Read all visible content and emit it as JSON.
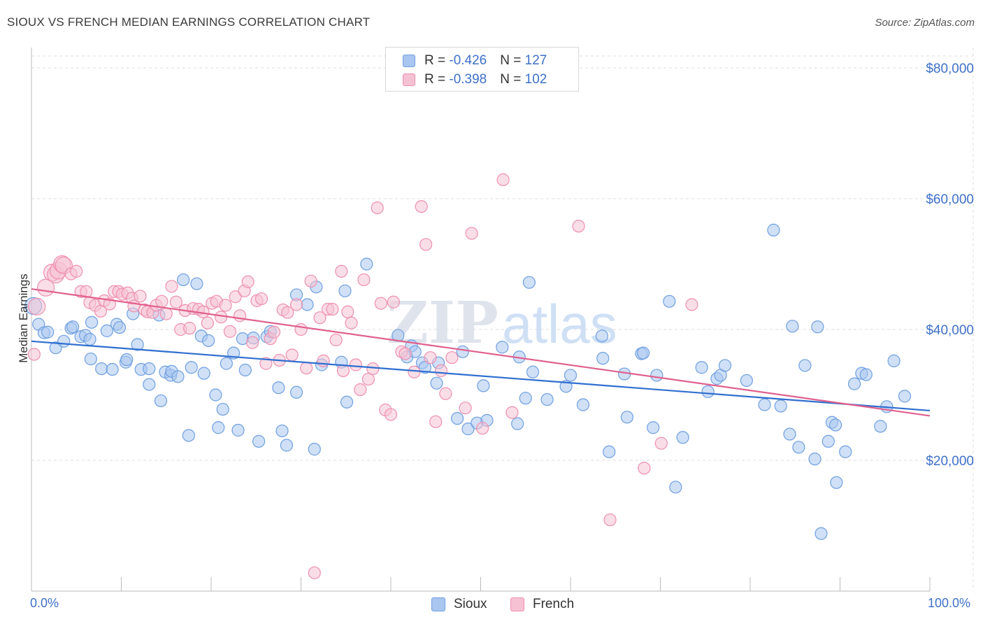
{
  "title": "SIOUX VS FRENCH MEDIAN EARNINGS CORRELATION CHART",
  "source": "Source: ZipAtlas.com",
  "watermark": "ZIPatlas",
  "legend": {
    "rows": [
      {
        "r_label": "R = ",
        "r_value": "-0.426",
        "n_label": "N = ",
        "n_value": "127",
        "color": "#a9c6f0",
        "border": "#6f9fe0"
      },
      {
        "r_label": "R = ",
        "r_value": "-0.398",
        "n_label": "N = ",
        "n_value": "102",
        "color": "#f6c2d3",
        "border": "#ee8fb0"
      }
    ]
  },
  "bottom_legend": [
    {
      "label": "Sioux",
      "color": "#a9c6f0",
      "border": "#6f9fe0"
    },
    {
      "label": "French",
      "color": "#f6c2d3",
      "border": "#ee8fb0"
    }
  ],
  "chart_data": {
    "type": "scatter",
    "ylabel": "Median Earnings",
    "xlabel_left": "0.0%",
    "xlabel_right": "100.0%",
    "xlim": [
      0,
      100
    ],
    "ylim": [
      0,
      80000
    ],
    "y_ticks": [
      {
        "value": 20000,
        "label": "$20,000"
      },
      {
        "value": 40000,
        "label": "$40,000"
      },
      {
        "value": 60000,
        "label": "$60,000"
      },
      {
        "value": 80000,
        "label": "$80,000"
      }
    ],
    "x_minor_ticks": [
      0,
      10,
      20,
      30,
      40,
      50,
      60,
      70,
      80,
      90,
      100
    ],
    "grid": true,
    "series": [
      {
        "name": "Sioux",
        "color": "#6f9fe0",
        "fill": "#a9c6f0",
        "trend": {
          "x": [
            0,
            100
          ],
          "y": [
            38200,
            27600
          ],
          "color": "#2f6fd0"
        },
        "points": [
          [
            0.2,
            43600
          ],
          [
            0.8,
            40800
          ],
          [
            1.4,
            39500
          ],
          [
            1.8,
            39600
          ],
          [
            2.7,
            37200
          ],
          [
            3.6,
            38200
          ],
          [
            4.4,
            40200
          ],
          [
            4.6,
            40400
          ],
          [
            5.5,
            38900
          ],
          [
            6.0,
            39100
          ],
          [
            6.5,
            38500
          ],
          [
            6.6,
            35500
          ],
          [
            6.7,
            41100
          ],
          [
            7.8,
            34000
          ],
          [
            8.4,
            39800
          ],
          [
            9.0,
            33900
          ],
          [
            9.5,
            40800
          ],
          [
            9.8,
            40300
          ],
          [
            10.5,
            35000
          ],
          [
            10.6,
            35400
          ],
          [
            11.3,
            42400
          ],
          [
            11.8,
            37700
          ],
          [
            12.2,
            33900
          ],
          [
            13.1,
            34000
          ],
          [
            13.1,
            31600
          ],
          [
            14.2,
            42200
          ],
          [
            14.4,
            29100
          ],
          [
            14.9,
            33500
          ],
          [
            15.5,
            33000
          ],
          [
            15.6,
            33600
          ],
          [
            16.3,
            32800
          ],
          [
            16.9,
            47600
          ],
          [
            17.5,
            23800
          ],
          [
            17.8,
            34200
          ],
          [
            18.4,
            47000
          ],
          [
            18.9,
            39000
          ],
          [
            19.2,
            33300
          ],
          [
            19.7,
            38300
          ],
          [
            20.5,
            30000
          ],
          [
            20.8,
            25000
          ],
          [
            21.3,
            27800
          ],
          [
            21.7,
            34800
          ],
          [
            22.5,
            36400
          ],
          [
            23.0,
            24600
          ],
          [
            23.5,
            38600
          ],
          [
            23.8,
            33800
          ],
          [
            24.7,
            38700
          ],
          [
            25.3,
            22900
          ],
          [
            26.2,
            38900
          ],
          [
            26.6,
            39700
          ],
          [
            27.5,
            31100
          ],
          [
            27.9,
            24500
          ],
          [
            28.4,
            22300
          ],
          [
            29.5,
            45300
          ],
          [
            29.5,
            30400
          ],
          [
            30.7,
            43800
          ],
          [
            31.5,
            21700
          ],
          [
            31.7,
            46500
          ],
          [
            32.3,
            34600
          ],
          [
            34.5,
            35000
          ],
          [
            34.9,
            45900
          ],
          [
            35.1,
            28900
          ],
          [
            37.3,
            50000
          ],
          [
            40.8,
            39100
          ],
          [
            41.8,
            35800
          ],
          [
            42.3,
            37500
          ],
          [
            42.7,
            36600
          ],
          [
            43.5,
            34900
          ],
          [
            43.8,
            34200
          ],
          [
            45.1,
            31800
          ],
          [
            45.3,
            34900
          ],
          [
            47.4,
            26400
          ],
          [
            48.0,
            36600
          ],
          [
            48.6,
            24800
          ],
          [
            49.6,
            25700
          ],
          [
            50.3,
            31400
          ],
          [
            50.7,
            26100
          ],
          [
            52.4,
            37300
          ],
          [
            54.1,
            25600
          ],
          [
            54.3,
            35800
          ],
          [
            55.0,
            29500
          ],
          [
            55.4,
            47200
          ],
          [
            55.8,
            33500
          ],
          [
            57.4,
            29300
          ],
          [
            59.5,
            31300
          ],
          [
            60.0,
            33000
          ],
          [
            61.4,
            28500
          ],
          [
            63.5,
            39000
          ],
          [
            63.6,
            35600
          ],
          [
            64.3,
            21300
          ],
          [
            66.0,
            33200
          ],
          [
            66.3,
            26600
          ],
          [
            67.9,
            36300
          ],
          [
            68.1,
            36400
          ],
          [
            69.2,
            25000
          ],
          [
            69.6,
            33000
          ],
          [
            71.0,
            44300
          ],
          [
            71.7,
            15900
          ],
          [
            72.5,
            23500
          ],
          [
            74.6,
            34200
          ],
          [
            75.3,
            30500
          ],
          [
            76.3,
            32500
          ],
          [
            76.7,
            33000
          ],
          [
            77.2,
            34500
          ],
          [
            79.6,
            32200
          ],
          [
            81.6,
            28500
          ],
          [
            82.6,
            55200
          ],
          [
            83.4,
            28300
          ],
          [
            84.4,
            24000
          ],
          [
            84.7,
            40500
          ],
          [
            85.4,
            22000
          ],
          [
            86.1,
            34500
          ],
          [
            87.2,
            20200
          ],
          [
            87.5,
            40400
          ],
          [
            87.9,
            8800
          ],
          [
            88.7,
            22900
          ],
          [
            89.1,
            25800
          ],
          [
            89.5,
            25400
          ],
          [
            89.6,
            16600
          ],
          [
            90.6,
            21300
          ],
          [
            91.6,
            31700
          ],
          [
            92.4,
            33300
          ],
          [
            92.9,
            33100
          ],
          [
            94.5,
            25200
          ],
          [
            95.2,
            28200
          ],
          [
            96.0,
            35200
          ],
          [
            97.2,
            29800
          ]
        ]
      },
      {
        "name": "French",
        "color": "#ee8fb0",
        "fill": "#f6c2d3",
        "trend": {
          "x": [
            0,
            100
          ],
          "y": [
            46200,
            26800
          ],
          "color": "#e0608e"
        },
        "points": [
          [
            0.3,
            36200
          ],
          [
            0.6,
            43500
          ],
          [
            1.6,
            46400
          ],
          [
            2.3,
            48700
          ],
          [
            2.7,
            48400
          ],
          [
            3.0,
            49000
          ],
          [
            3.4,
            50000
          ],
          [
            3.6,
            49800
          ],
          [
            4.4,
            48500
          ],
          [
            5.0,
            48900
          ],
          [
            5.5,
            45800
          ],
          [
            6.1,
            45800
          ],
          [
            6.5,
            44100
          ],
          [
            7.1,
            43700
          ],
          [
            7.7,
            42800
          ],
          [
            8.1,
            44400
          ],
          [
            8.7,
            43900
          ],
          [
            9.2,
            45800
          ],
          [
            9.7,
            45800
          ],
          [
            10.1,
            45400
          ],
          [
            10.7,
            45600
          ],
          [
            11.2,
            44800
          ],
          [
            11.4,
            43600
          ],
          [
            12.1,
            45100
          ],
          [
            12.6,
            43000
          ],
          [
            12.9,
            42700
          ],
          [
            13.5,
            42600
          ],
          [
            13.9,
            43700
          ],
          [
            14.5,
            44300
          ],
          [
            15.0,
            42400
          ],
          [
            15.6,
            46600
          ],
          [
            16.1,
            44200
          ],
          [
            16.6,
            40000
          ],
          [
            17.1,
            42900
          ],
          [
            17.6,
            40200
          ],
          [
            18.0,
            43200
          ],
          [
            18.6,
            43100
          ],
          [
            19.1,
            42700
          ],
          [
            19.6,
            41000
          ],
          [
            20.1,
            44000
          ],
          [
            20.6,
            44300
          ],
          [
            21.1,
            41900
          ],
          [
            21.6,
            43700
          ],
          [
            22.1,
            39700
          ],
          [
            22.7,
            45000
          ],
          [
            23.2,
            42100
          ],
          [
            23.7,
            45900
          ],
          [
            24.1,
            47300
          ],
          [
            24.6,
            38000
          ],
          [
            25.1,
            44400
          ],
          [
            25.6,
            44700
          ],
          [
            26.1,
            34800
          ],
          [
            26.6,
            38600
          ],
          [
            27.0,
            39600
          ],
          [
            27.6,
            35300
          ],
          [
            28.0,
            43000
          ],
          [
            28.5,
            42600
          ],
          [
            29.0,
            36100
          ],
          [
            29.5,
            43800
          ],
          [
            30.0,
            40000
          ],
          [
            30.6,
            34100
          ],
          [
            31.1,
            47400
          ],
          [
            31.5,
            2800
          ],
          [
            32.1,
            41800
          ],
          [
            32.5,
            35200
          ],
          [
            33.0,
            43100
          ],
          [
            33.5,
            43100
          ],
          [
            33.9,
            38400
          ],
          [
            34.5,
            48900
          ],
          [
            34.7,
            33700
          ],
          [
            35.2,
            42700
          ],
          [
            35.6,
            41000
          ],
          [
            36.1,
            34600
          ],
          [
            36.6,
            30800
          ],
          [
            37.0,
            47600
          ],
          [
            37.5,
            32400
          ],
          [
            38.0,
            34000
          ],
          [
            38.5,
            58600
          ],
          [
            38.9,
            44000
          ],
          [
            39.4,
            27700
          ],
          [
            40.0,
            27000
          ],
          [
            40.3,
            44200
          ],
          [
            41.2,
            36600
          ],
          [
            41.6,
            36300
          ],
          [
            42.6,
            33500
          ],
          [
            43.4,
            58800
          ],
          [
            43.9,
            53000
          ],
          [
            44.4,
            35700
          ],
          [
            45.0,
            25900
          ],
          [
            45.6,
            33700
          ],
          [
            46.1,
            30200
          ],
          [
            46.8,
            35700
          ],
          [
            48.3,
            28000
          ],
          [
            49.0,
            54700
          ],
          [
            50.2,
            24900
          ],
          [
            52.5,
            62900
          ],
          [
            53.5,
            27300
          ],
          [
            60.9,
            55800
          ],
          [
            64.4,
            10900
          ],
          [
            68.2,
            18800
          ],
          [
            70.1,
            22600
          ],
          [
            73.5,
            43800
          ]
        ]
      }
    ]
  }
}
